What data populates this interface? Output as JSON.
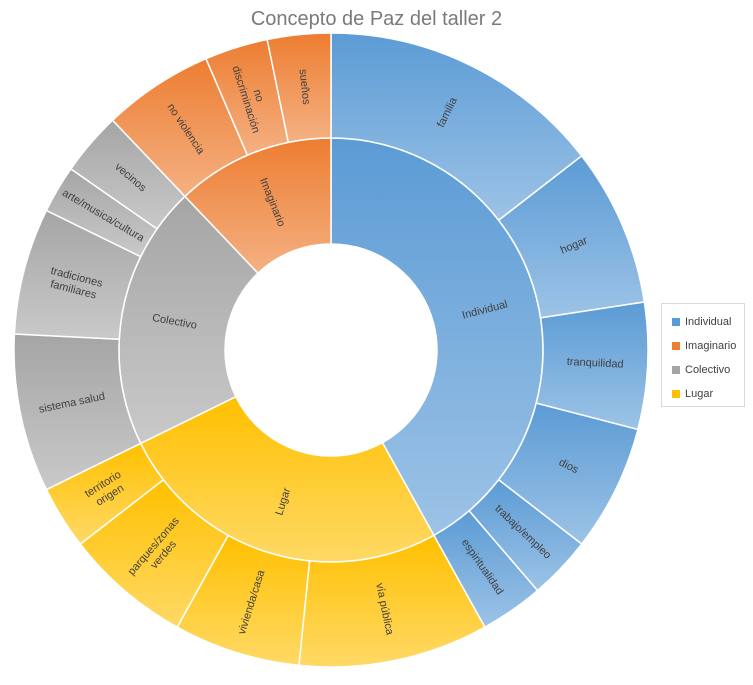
{
  "chart_data": {
    "type": "sunburst",
    "title": "Concepto de Paz del taller 2",
    "legend_position": "right",
    "colors": {
      "Individual": [
        "#5b9bd5",
        "#9dc3e6"
      ],
      "Imaginario": [
        "#ed7d31",
        "#f4b183"
      ],
      "Colectivo": [
        "#a5a5a5",
        "#c9c9c9"
      ],
      "Lugar": [
        "#ffc000",
        "#ffd966"
      ]
    },
    "series": [
      {
        "name": "Individual",
        "children": [
          {
            "label": "familia",
            "value": 9
          },
          {
            "label": "hogar",
            "value": 5
          },
          {
            "label": "tranquilidad",
            "value": 4
          },
          {
            "label": "dios",
            "value": 4
          },
          {
            "label": "trabajo/empleo",
            "value": 2
          },
          {
            "label": "espiritualidad",
            "value": 2
          }
        ]
      },
      {
        "name": "Lugar",
        "children": [
          {
            "label": "vía pública",
            "value": 6
          },
          {
            "label": "vivienda/casa",
            "value": 4
          },
          {
            "label": "parques/zonas verdes",
            "value": 4
          },
          {
            "label": "territorio origen",
            "value": 2
          }
        ]
      },
      {
        "name": "Colectivo",
        "children": [
          {
            "label": "sistema salud",
            "value": 5
          },
          {
            "label": "tradiciones familiares",
            "value": 4
          },
          {
            "label": "arte/musica/cultura",
            "value": 1.5
          },
          {
            "label": "vecinos",
            "value": 2
          }
        ]
      },
      {
        "name": "Imaginario",
        "children": [
          {
            "label": "no violencia",
            "value": 3.5
          },
          {
            "label": "no discriminación",
            "value": 2
          },
          {
            "label": "sueños",
            "value": 2
          }
        ]
      }
    ],
    "legend": [
      "Individual",
      "Imaginario",
      "Colectivo",
      "Lugar"
    ]
  }
}
